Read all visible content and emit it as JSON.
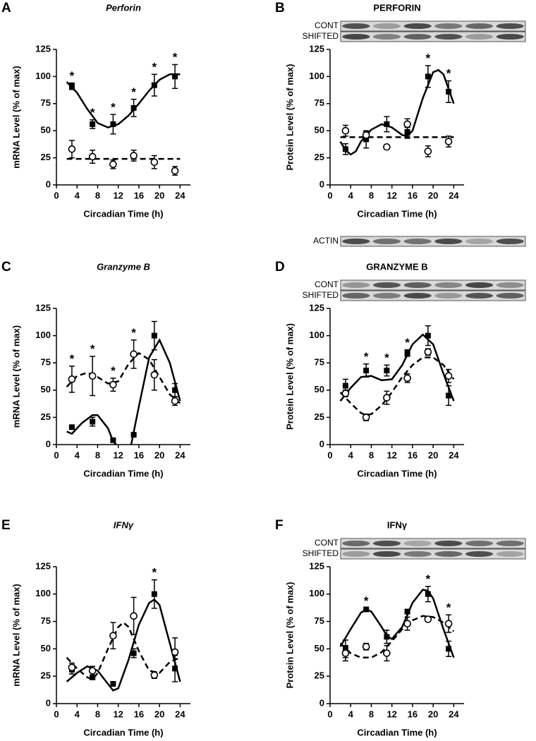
{
  "chart_data": [
    {
      "type": "line",
      "panel": "A",
      "title": "Perforin",
      "title_italic": true,
      "ylabel": "mRNA Level (% of max)",
      "xlabel": "Circadian Time (h)",
      "xlim": [
        0,
        26
      ],
      "xticks": [
        0,
        4,
        8,
        12,
        16,
        20,
        24
      ],
      "ylim": [
        0,
        125
      ],
      "yticks": [
        0,
        25,
        50,
        75,
        100,
        125
      ],
      "series": [
        {
          "marker": "square",
          "color": "#000000",
          "x": [
            3,
            7,
            11,
            15,
            19,
            23
          ],
          "values": [
            91,
            56,
            56,
            71,
            92,
            100
          ],
          "errors": [
            3,
            4,
            9,
            8,
            10,
            11
          ]
        },
        {
          "marker": "circle",
          "color": "#000000",
          "x": [
            3,
            7,
            11,
            15,
            19,
            23
          ],
          "values": [
            33,
            26,
            19,
            27,
            21,
            13
          ],
          "errors": [
            8,
            6,
            4,
            5,
            6,
            4
          ]
        }
      ],
      "fits": [
        {
          "style": "solid",
          "x": [
            2,
            4,
            6,
            8,
            10,
            12,
            14,
            16,
            18,
            20,
            22,
            24
          ],
          "values": [
            95,
            85,
            70,
            57,
            53,
            56,
            64,
            75,
            87,
            97,
            102,
            102
          ]
        },
        {
          "style": "dashed",
          "x": [
            2,
            24
          ],
          "values": [
            24,
            24
          ]
        }
      ],
      "annotations": [
        {
          "text": "*",
          "x": 3,
          "y": 102
        },
        {
          "text": "*",
          "x": 7,
          "y": 68
        },
        {
          "text": "*",
          "x": 11,
          "y": 73
        },
        {
          "text": "*",
          "x": 15,
          "y": 87
        },
        {
          "text": "*",
          "x": 19,
          "y": 110
        },
        {
          "text": "*",
          "x": 23,
          "y": 119
        }
      ]
    },
    {
      "type": "line",
      "panel": "B",
      "title": "PERFORIN",
      "title_italic": false,
      "ylabel": "Protein Level (% of max)",
      "xlabel": "Circadian Time (h)",
      "xlim": [
        0,
        26
      ],
      "xticks": [
        0,
        4,
        8,
        12,
        16,
        20,
        24
      ],
      "ylim": [
        0,
        125
      ],
      "yticks": [
        0,
        25,
        50,
        75,
        100,
        125
      ],
      "series": [
        {
          "marker": "square",
          "color": "#000000",
          "x": [
            3,
            7,
            11,
            15,
            19,
            23
          ],
          "values": [
            33,
            42,
            56,
            48,
            100,
            86
          ],
          "errors": [
            5,
            8,
            7,
            5,
            10,
            10
          ]
        },
        {
          "marker": "circle",
          "color": "#000000",
          "x": [
            3,
            7,
            11,
            15,
            19,
            23
          ],
          "values": [
            50,
            46,
            35,
            56,
            31,
            40
          ],
          "errors": [
            5,
            3,
            0,
            5,
            5,
            5
          ]
        }
      ],
      "fits": [
        {
          "style": "solid",
          "x": [
            2,
            3,
            4,
            5,
            6,
            8,
            10,
            12,
            14,
            15,
            16,
            18,
            20,
            21,
            22,
            24
          ],
          "values": [
            40,
            32,
            28,
            31,
            40,
            51,
            56,
            53,
            46,
            45,
            50,
            80,
            104,
            106,
            102,
            75
          ]
        },
        {
          "style": "dashed",
          "x": [
            2,
            24
          ],
          "values": [
            44,
            44
          ]
        }
      ],
      "annotations": [
        {
          "text": "*",
          "x": 19,
          "y": 118
        },
        {
          "text": "*",
          "x": 23,
          "y": 104
        }
      ],
      "blot_labels": [
        "CONT",
        "SHIFTED"
      ],
      "below_blot_label": "ACTIN"
    },
    {
      "type": "line",
      "panel": "C",
      "title": "Granzyme B",
      "title_italic": true,
      "ylabel": "mRNA Level (% of max)",
      "xlabel": "Circadian Time (h)",
      "xlim": [
        0,
        26
      ],
      "xticks": [
        0,
        4,
        8,
        12,
        16,
        20,
        24
      ],
      "ylim": [
        0,
        125
      ],
      "yticks": [
        0,
        25,
        50,
        75,
        100,
        125
      ],
      "series": [
        {
          "marker": "square",
          "color": "#000000",
          "x": [
            3,
            7,
            11,
            15,
            19,
            23
          ],
          "values": [
            16,
            21,
            4,
            9,
            100,
            50
          ],
          "errors": [
            1,
            4,
            1,
            1,
            13,
            6
          ]
        },
        {
          "marker": "circle",
          "color": "#000000",
          "x": [
            3,
            7,
            11,
            15,
            19,
            23
          ],
          "values": [
            60,
            63,
            55,
            83,
            64,
            40
          ],
          "errors": [
            12,
            18,
            6,
            13,
            14,
            4
          ]
        }
      ],
      "fits": [
        {
          "style": "solid",
          "x": [
            2,
            3,
            5,
            7,
            8,
            10,
            11,
            11.6,
            13,
            14.5,
            16,
            18,
            20,
            22,
            24
          ],
          "values": [
            12,
            10,
            20,
            27,
            27,
            15,
            3,
            0,
            null,
            0,
            35,
            80,
            96,
            75,
            40
          ]
        },
        {
          "style": "dashed",
          "x": [
            2,
            4,
            6,
            8,
            10,
            12,
            14,
            16,
            18,
            20,
            22,
            24
          ],
          "values": [
            53,
            63,
            66,
            62,
            56,
            58,
            74,
            84,
            78,
            62,
            46,
            38
          ]
        }
      ],
      "annotations": [
        {
          "text": "*",
          "x": 3,
          "y": 80
        },
        {
          "text": "*",
          "x": 7,
          "y": 89
        },
        {
          "text": "*",
          "x": 11,
          "y": 69
        },
        {
          "text": "*",
          "x": 15,
          "y": 104
        }
      ]
    },
    {
      "type": "line",
      "panel": "D",
      "title": "GRANZYME B",
      "title_italic": false,
      "ylabel": "Protein Level (% of max)",
      "xlabel": "Circadian Time (h)",
      "xlim": [
        0,
        26
      ],
      "xticks": [
        0,
        4,
        8,
        12,
        16,
        20,
        24
      ],
      "ylim": [
        0,
        125
      ],
      "yticks": [
        0,
        25,
        50,
        75,
        100,
        125
      ],
      "series": [
        {
          "marker": "square",
          "color": "#000000",
          "x": [
            3,
            7,
            11,
            15,
            19,
            23
          ],
          "values": [
            54,
            68,
            68,
            84,
            100,
            45
          ],
          "errors": [
            6,
            6,
            5,
            3,
            9,
            9
          ]
        },
        {
          "marker": "circle",
          "color": "#000000",
          "x": [
            3,
            7,
            11,
            15,
            19,
            23
          ],
          "values": [
            47,
            25,
            43,
            61,
            85,
            63
          ],
          "errors": [
            3,
            3,
            6,
            4,
            3,
            6
          ]
        }
      ],
      "fits": [
        {
          "style": "solid",
          "x": [
            2,
            4,
            6,
            8,
            10,
            12,
            14,
            16,
            18,
            20,
            22,
            24
          ],
          "values": [
            40,
            52,
            62,
            63,
            59,
            60,
            73,
            92,
            101,
            92,
            65,
            40
          ]
        },
        {
          "style": "dashed",
          "x": [
            2,
            4,
            6,
            7,
            8,
            10,
            12,
            14,
            16,
            18,
            20,
            22,
            24
          ],
          "values": [
            48,
            38,
            29,
            27,
            28,
            36,
            48,
            62,
            73,
            80,
            80,
            73,
            60
          ]
        }
      ],
      "annotations": [
        {
          "text": "*",
          "x": 7,
          "y": 82
        },
        {
          "text": "*",
          "x": 11,
          "y": 81
        },
        {
          "text": "*",
          "x": 15,
          "y": 95
        }
      ],
      "blot_labels": [
        "CONT",
        "SHIFTED"
      ]
    },
    {
      "type": "line",
      "panel": "E",
      "title": "IFNγ",
      "title_italic": true,
      "ylabel": "mRNA Level (% of max)",
      "xlabel": "Circadian Time (h)",
      "xlim": [
        0,
        26
      ],
      "xticks": [
        0,
        4,
        8,
        12,
        16,
        20,
        24
      ],
      "ylim": [
        0,
        125
      ],
      "yticks": [
        0,
        25,
        50,
        75,
        100,
        125
      ],
      "series": [
        {
          "marker": "square",
          "color": "#000000",
          "x": [
            3,
            7,
            11,
            15,
            19,
            23
          ],
          "values": [
            31,
            24,
            18,
            46,
            100,
            32
          ],
          "errors": [
            4,
            2,
            2,
            4,
            13,
            12
          ]
        },
        {
          "marker": "circle",
          "color": "#000000",
          "x": [
            3,
            7,
            11,
            15,
            19,
            23
          ],
          "values": [
            33,
            30,
            62,
            80,
            26,
            47
          ],
          "errors": [
            4,
            4,
            12,
            17,
            3,
            13
          ]
        }
      ],
      "fits": [
        {
          "style": "solid",
          "x": [
            2,
            4,
            6,
            8,
            10,
            11,
            12,
            14,
            16,
            18,
            19,
            20,
            22,
            24
          ],
          "values": [
            20,
            28,
            34,
            30,
            18,
            12,
            14,
            40,
            72,
            92,
            95,
            90,
            55,
            20
          ]
        },
        {
          "style": "dashed",
          "x": [
            2,
            4,
            6,
            7,
            8,
            10,
            12,
            13,
            14,
            16,
            18,
            20,
            22,
            24
          ],
          "values": [
            42,
            32,
            24,
            22,
            28,
            50,
            70,
            74,
            70,
            48,
            30,
            28,
            38,
            42
          ]
        }
      ],
      "annotations": [
        {
          "text": "*",
          "x": 19,
          "y": 121
        }
      ]
    },
    {
      "type": "line",
      "panel": "F",
      "title": "IFNγ",
      "title_italic": false,
      "ylabel": "Protein Level (% of max)",
      "xlabel": "Circadian Time (h)",
      "xlim": [
        0,
        26
      ],
      "xticks": [
        0,
        4,
        8,
        12,
        16,
        20,
        24
      ],
      "ylim": [
        0,
        125
      ],
      "yticks": [
        0,
        25,
        50,
        75,
        100,
        125
      ],
      "series": [
        {
          "marker": "square",
          "color": "#000000",
          "x": [
            3,
            7,
            11,
            15,
            19,
            23
          ],
          "values": [
            50,
            86,
            61,
            84,
            100,
            50
          ],
          "errors": [
            8,
            1,
            6,
            2,
            7,
            7
          ]
        },
        {
          "marker": "circle",
          "color": "#000000",
          "x": [
            3,
            7,
            11,
            15,
            19,
            23
          ],
          "values": [
            46,
            52,
            46,
            73,
            77,
            73
          ],
          "errors": [
            7,
            3,
            7,
            6,
            2,
            8
          ]
        }
      ],
      "fits": [
        {
          "style": "solid",
          "x": [
            2,
            4,
            6,
            7,
            8,
            10,
            11,
            12,
            14,
            16,
            18,
            19,
            20,
            22,
            24
          ],
          "values": [
            52,
            68,
            83,
            86,
            84,
            70,
            62,
            59,
            70,
            92,
            104,
            103,
            96,
            68,
            42
          ]
        },
        {
          "style": "dashed",
          "x": [
            2,
            4,
            6,
            8,
            10,
            12,
            14,
            16,
            18,
            20,
            22,
            24
          ],
          "values": [
            55,
            46,
            42,
            42,
            47,
            57,
            68,
            76,
            80,
            79,
            74,
            66
          ]
        }
      ],
      "annotations": [
        {
          "text": "*",
          "x": 7,
          "y": 95
        },
        {
          "text": "*",
          "x": 19,
          "y": 115
        },
        {
          "text": "*",
          "x": 23,
          "y": 89
        }
      ],
      "blot_labels": [
        "CONT",
        "SHIFTED"
      ]
    }
  ]
}
